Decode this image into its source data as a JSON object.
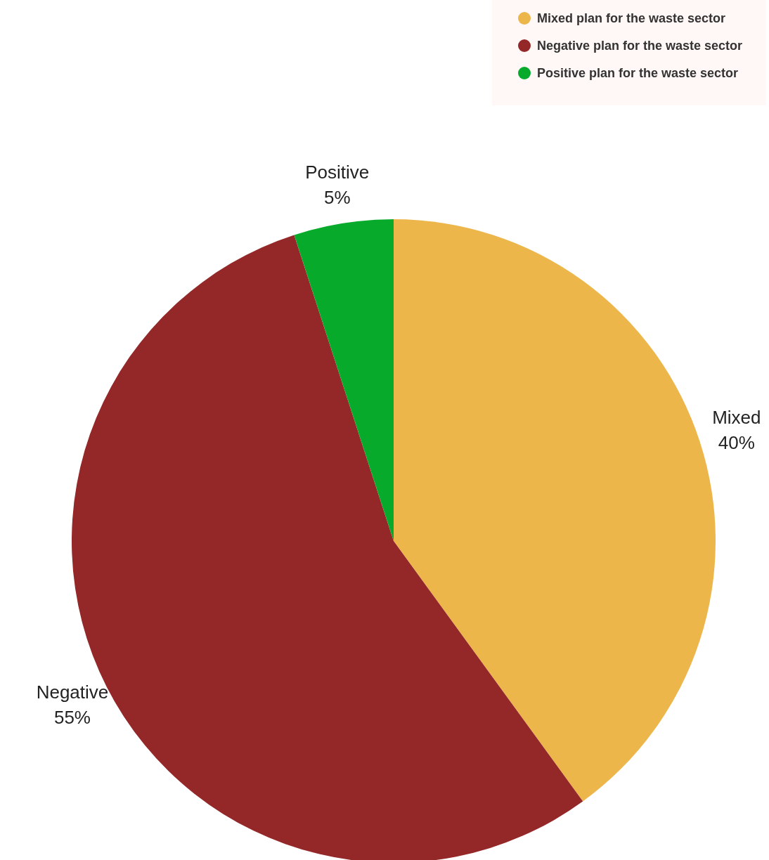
{
  "chart_data": {
    "type": "pie",
    "categories": [
      "Mixed plan for the waste sector",
      "Negative plan for the waste sector",
      "Positive plan for the waste sector"
    ],
    "values": [
      40,
      55,
      5
    ],
    "colors": [
      "#ecb64b",
      "#942828",
      "#08aa2c"
    ],
    "value_labels": [
      "Mixed\n40%",
      "Negative\n55%",
      "Positive\n5%"
    ],
    "legend": "top right"
  }
}
